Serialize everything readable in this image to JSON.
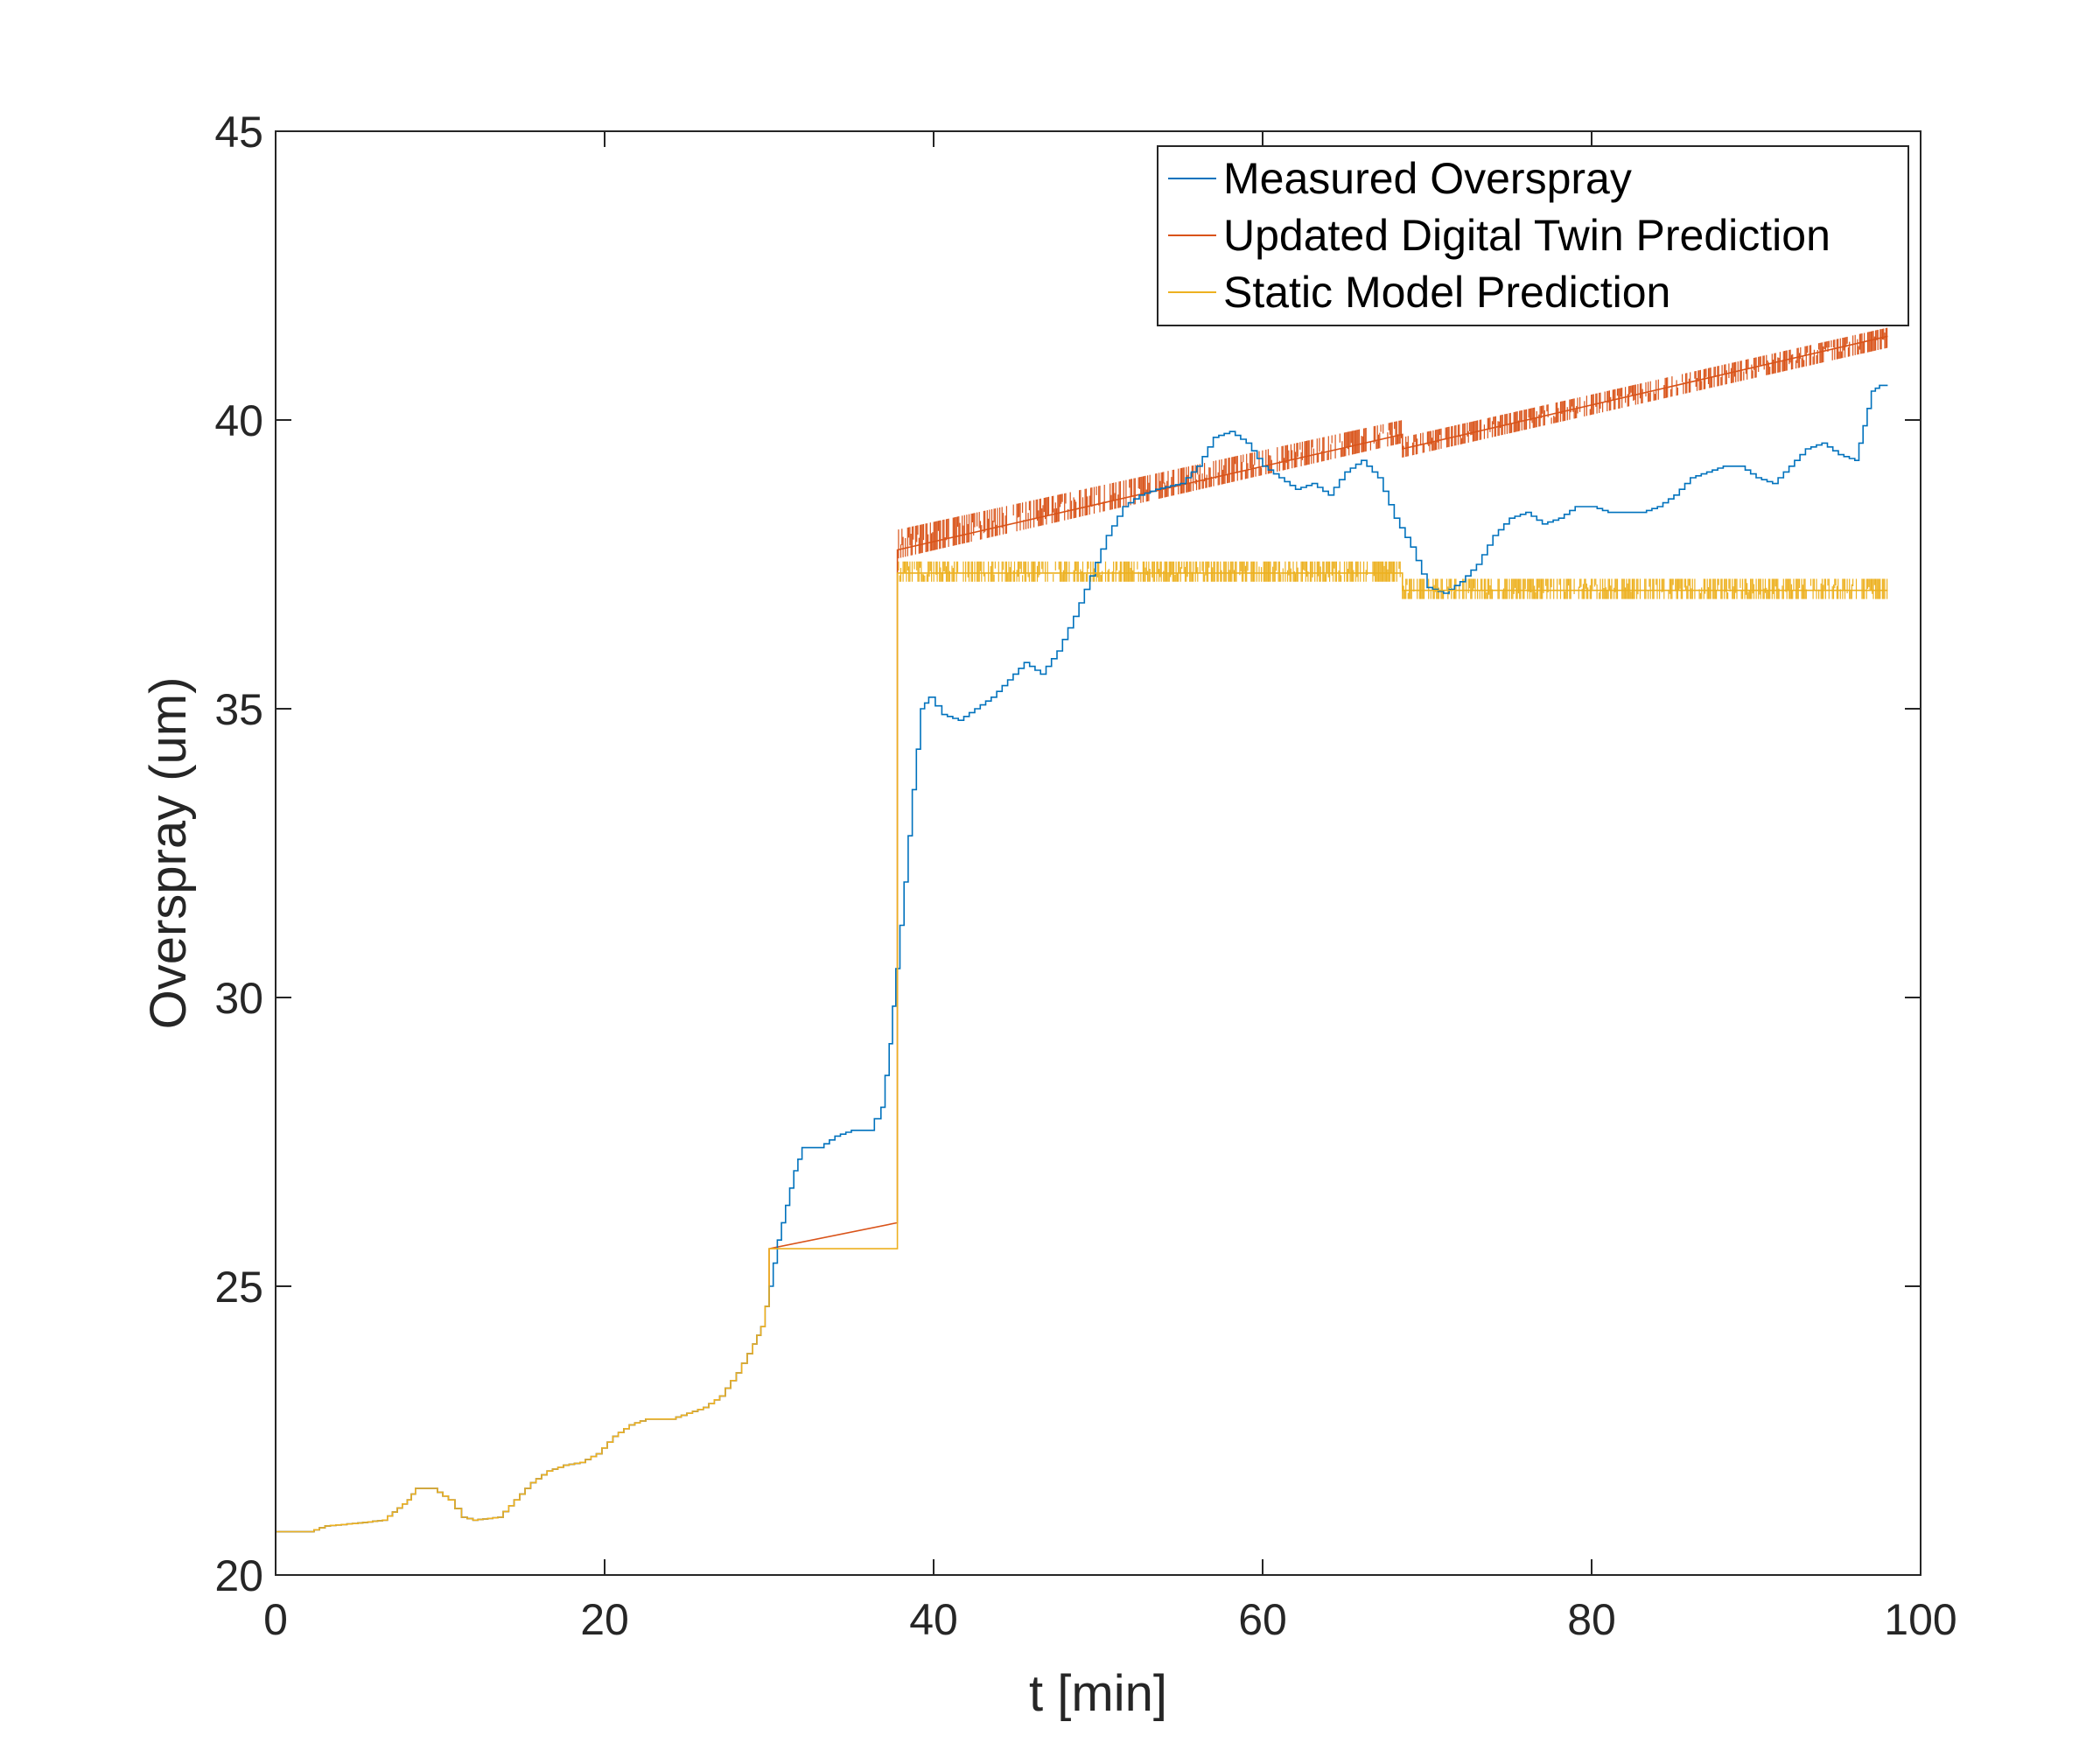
{
  "chart_data": {
    "type": "line",
    "title": "",
    "xlabel": "t [min]",
    "ylabel": "Overspray (um)",
    "xlim": [
      0,
      100
    ],
    "ylim": [
      20,
      45
    ],
    "xticks": [
      0,
      20,
      40,
      60,
      80,
      100
    ],
    "yticks": [
      20,
      25,
      30,
      35,
      40,
      45
    ],
    "xtick_labels": [
      "0",
      "20",
      "40",
      "60",
      "80",
      "100"
    ],
    "ytick_labels": [
      "20",
      "25",
      "30",
      "35",
      "40",
      "45"
    ],
    "grid": false,
    "legend_position": "top-right",
    "series": [
      {
        "name": "Measured Overspray",
        "color": "#0072BD",
        "style": "steps",
        "points": [
          [
            0,
            20.75
          ],
          [
            2,
            20.75
          ],
          [
            3,
            20.85
          ],
          [
            5,
            20.9
          ],
          [
            6.5,
            20.95
          ],
          [
            8,
            21.3
          ],
          [
            8.5,
            21.5
          ],
          [
            9.5,
            21.5
          ],
          [
            10.5,
            21.3
          ],
          [
            11.3,
            21.0
          ],
          [
            12,
            20.95
          ],
          [
            13.5,
            21.0
          ],
          [
            14.5,
            21.3
          ],
          [
            15.5,
            21.6
          ],
          [
            16.5,
            21.8
          ],
          [
            17.5,
            21.9
          ],
          [
            18.5,
            21.95
          ],
          [
            19.5,
            22.1
          ],
          [
            20.5,
            22.4
          ],
          [
            21.5,
            22.6
          ],
          [
            22.5,
            22.7
          ],
          [
            24,
            22.7
          ],
          [
            25,
            22.8
          ],
          [
            26,
            22.9
          ],
          [
            27,
            23.1
          ],
          [
            28,
            23.5
          ],
          [
            29,
            24.0
          ],
          [
            29.5,
            24.3
          ],
          [
            30,
            25.0
          ],
          [
            30.5,
            25.8
          ],
          [
            31,
            26.4
          ],
          [
            31.5,
            27.0
          ],
          [
            32,
            27.4
          ],
          [
            33,
            27.4
          ],
          [
            34,
            27.6
          ],
          [
            35,
            27.7
          ],
          [
            36,
            27.7
          ],
          [
            36.8,
            28.1
          ],
          [
            37.3,
            29.2
          ],
          [
            37.7,
            30.5
          ],
          [
            38.2,
            32.0
          ],
          [
            38.7,
            33.6
          ],
          [
            39.2,
            35.0
          ],
          [
            39.7,
            35.2
          ],
          [
            40.5,
            34.9
          ],
          [
            41.5,
            34.8
          ],
          [
            42.5,
            35.0
          ],
          [
            43.5,
            35.2
          ],
          [
            44.5,
            35.5
          ],
          [
            45.5,
            35.8
          ],
          [
            46.5,
            35.6
          ],
          [
            47.5,
            36.0
          ],
          [
            48.5,
            36.6
          ],
          [
            49.5,
            37.3
          ],
          [
            50.5,
            38.0
          ],
          [
            51.5,
            38.5
          ],
          [
            52.5,
            38.7
          ],
          [
            53.5,
            38.8
          ],
          [
            55,
            38.9
          ],
          [
            56,
            39.2
          ],
          [
            57,
            39.7
          ],
          [
            58,
            39.8
          ],
          [
            59,
            39.6
          ],
          [
            60,
            39.2
          ],
          [
            61,
            39.0
          ],
          [
            62,
            38.8
          ],
          [
            63,
            38.9
          ],
          [
            64,
            38.7
          ],
          [
            65,
            39.1
          ],
          [
            66,
            39.3
          ],
          [
            67,
            39.0
          ],
          [
            68,
            38.3
          ],
          [
            69,
            37.8
          ],
          [
            70,
            37.1
          ],
          [
            71,
            37.0
          ],
          [
            72,
            37.2
          ],
          [
            73,
            37.5
          ],
          [
            74,
            38.0
          ],
          [
            75,
            38.3
          ],
          [
            76,
            38.4
          ],
          [
            77,
            38.2
          ],
          [
            78,
            38.3
          ],
          [
            79,
            38.5
          ],
          [
            80,
            38.5
          ],
          [
            81,
            38.4
          ],
          [
            82,
            38.4
          ],
          [
            83,
            38.4
          ],
          [
            84,
            38.5
          ],
          [
            85,
            38.7
          ],
          [
            86,
            39.0
          ],
          [
            87,
            39.1
          ],
          [
            88,
            39.2
          ],
          [
            89,
            39.2
          ],
          [
            90,
            39.0
          ],
          [
            91,
            38.9
          ],
          [
            92,
            39.2
          ],
          [
            93,
            39.5
          ],
          [
            94,
            39.6
          ],
          [
            95,
            39.4
          ],
          [
            96,
            39.3
          ],
          [
            96.5,
            39.9
          ],
          [
            97,
            40.5
          ],
          [
            97.5,
            40.6
          ],
          [
            98,
            40.6
          ]
        ]
      },
      {
        "name": "Updated Digital Twin Prediction",
        "color": "#D95319",
        "style": "steps",
        "points": [
          [
            0,
            20.75
          ],
          [
            2,
            20.75
          ],
          [
            3,
            20.85
          ],
          [
            5,
            20.9
          ],
          [
            6.5,
            20.95
          ],
          [
            8,
            21.3
          ],
          [
            8.5,
            21.5
          ],
          [
            9.5,
            21.5
          ],
          [
            10.5,
            21.3
          ],
          [
            11.3,
            21.0
          ],
          [
            12,
            20.95
          ],
          [
            13.5,
            21.0
          ],
          [
            14.5,
            21.3
          ],
          [
            15.5,
            21.6
          ],
          [
            16.5,
            21.8
          ],
          [
            17.5,
            21.9
          ],
          [
            18.5,
            21.95
          ],
          [
            19.5,
            22.1
          ],
          [
            20.5,
            22.4
          ],
          [
            21.5,
            22.6
          ],
          [
            22.5,
            22.7
          ],
          [
            24,
            22.7
          ],
          [
            25,
            22.8
          ],
          [
            26,
            22.9
          ],
          [
            27,
            23.1
          ],
          [
            28,
            23.5
          ],
          [
            29,
            24.0
          ],
          [
            29.5,
            24.3
          ],
          [
            30,
            25.0
          ],
          [
            30,
            25.65
          ],
          [
            37.8,
            26.1
          ],
          [
            37.8,
            37.75
          ],
          [
            68.5,
            39.75
          ],
          [
            68.5,
            39.5
          ],
          [
            98,
            41.45
          ]
        ]
      },
      {
        "name": "Static Model Prediction",
        "color": "#EDB120",
        "style": "steps",
        "points": [
          [
            0,
            20.75
          ],
          [
            2,
            20.75
          ],
          [
            3,
            20.85
          ],
          [
            5,
            20.9
          ],
          [
            6.5,
            20.95
          ],
          [
            8,
            21.3
          ],
          [
            8.5,
            21.5
          ],
          [
            9.5,
            21.5
          ],
          [
            10.5,
            21.3
          ],
          [
            11.3,
            21.0
          ],
          [
            12,
            20.95
          ],
          [
            13.5,
            21.0
          ],
          [
            14.5,
            21.3
          ],
          [
            15.5,
            21.6
          ],
          [
            16.5,
            21.8
          ],
          [
            17.5,
            21.9
          ],
          [
            18.5,
            21.95
          ],
          [
            19.5,
            22.1
          ],
          [
            20.5,
            22.4
          ],
          [
            21.5,
            22.6
          ],
          [
            22.5,
            22.7
          ],
          [
            24,
            22.7
          ],
          [
            25,
            22.8
          ],
          [
            26,
            22.9
          ],
          [
            27,
            23.1
          ],
          [
            28,
            23.5
          ],
          [
            29,
            24.0
          ],
          [
            29.5,
            24.3
          ],
          [
            30,
            25.0
          ],
          [
            30,
            25.65
          ],
          [
            37.8,
            25.65
          ],
          [
            37.8,
            37.35
          ],
          [
            68.5,
            37.35
          ],
          [
            68.5,
            37.05
          ],
          [
            98,
            37.05
          ]
        ]
      }
    ],
    "bands": [
      {
        "series": "Updated Digital Twin Prediction",
        "color": "#D95319",
        "x_start": 37.8,
        "x_end": 68.5,
        "y_low_start": 37.6,
        "y_low_end": 39.6,
        "y_high_start": 38.1,
        "y_high_end": 40.0
      },
      {
        "series": "Updated Digital Twin Prediction",
        "color": "#D95319",
        "x_start": 68.5,
        "x_end": 98,
        "y_low_start": 39.35,
        "y_low_end": 41.25,
        "y_high_start": 39.7,
        "y_high_end": 41.6
      },
      {
        "series": "Static Model Prediction",
        "color": "#EDB120",
        "x_start": 37.8,
        "x_end": 68.5,
        "y_low_start": 37.2,
        "y_low_end": 37.2,
        "y_high_start": 37.55,
        "y_high_end": 37.55
      },
      {
        "series": "Static Model Prediction",
        "color": "#EDB120",
        "x_start": 68.5,
        "x_end": 98,
        "y_low_start": 36.9,
        "y_low_end": 36.9,
        "y_high_start": 37.25,
        "y_high_end": 37.25
      }
    ]
  }
}
